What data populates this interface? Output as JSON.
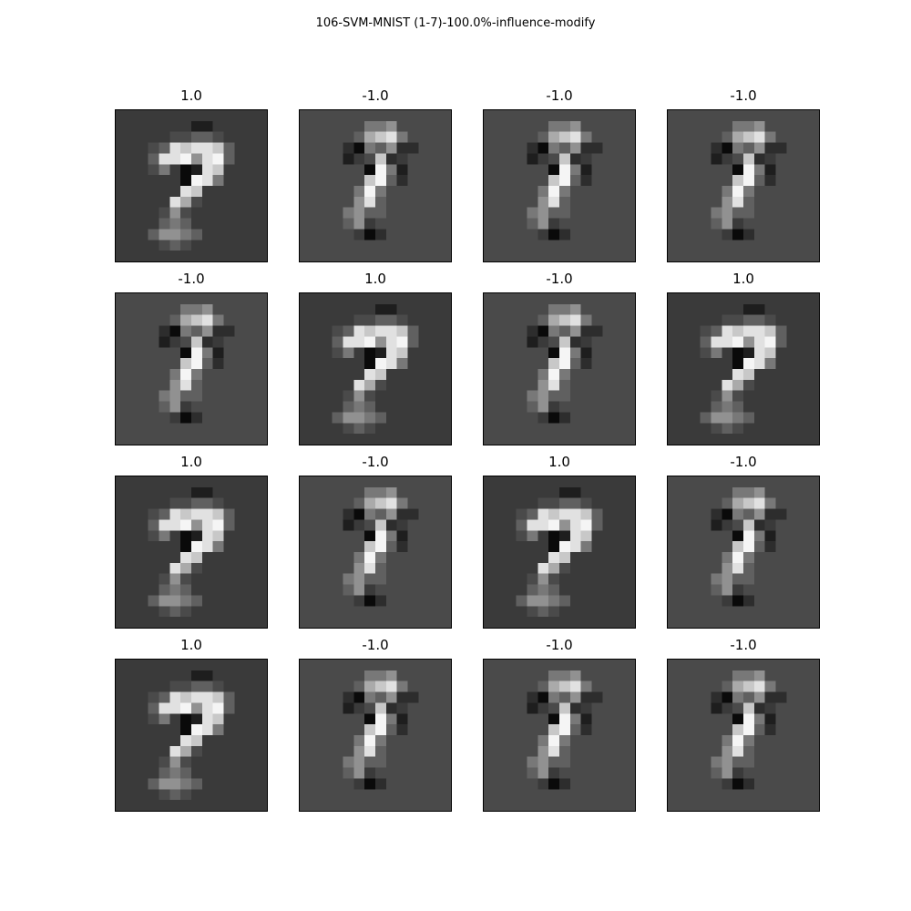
{
  "title": "106-SVM-MNIST (1-7)-100.0%-influence-modify",
  "panels": [
    {
      "label": "1.0",
      "variant": "A"
    },
    {
      "label": "-1.0",
      "variant": "B"
    },
    {
      "label": "-1.0",
      "variant": "B"
    },
    {
      "label": "-1.0",
      "variant": "B"
    },
    {
      "label": "-1.0",
      "variant": "B"
    },
    {
      "label": "1.0",
      "variant": "A"
    },
    {
      "label": "-1.0",
      "variant": "B"
    },
    {
      "label": "1.0",
      "variant": "A"
    },
    {
      "label": "1.0",
      "variant": "A"
    },
    {
      "label": "-1.0",
      "variant": "B"
    },
    {
      "label": "1.0",
      "variant": "A"
    },
    {
      "label": "-1.0",
      "variant": "B"
    },
    {
      "label": "1.0",
      "variant": "A"
    },
    {
      "label": "-1.0",
      "variant": "B"
    },
    {
      "label": "-1.0",
      "variant": "B"
    },
    {
      "label": "-1.0",
      "variant": "B"
    }
  ],
  "colors": {
    "background_A": "#3a3a3a",
    "background_B": "#4a4a4a",
    "border": "#000000"
  }
}
